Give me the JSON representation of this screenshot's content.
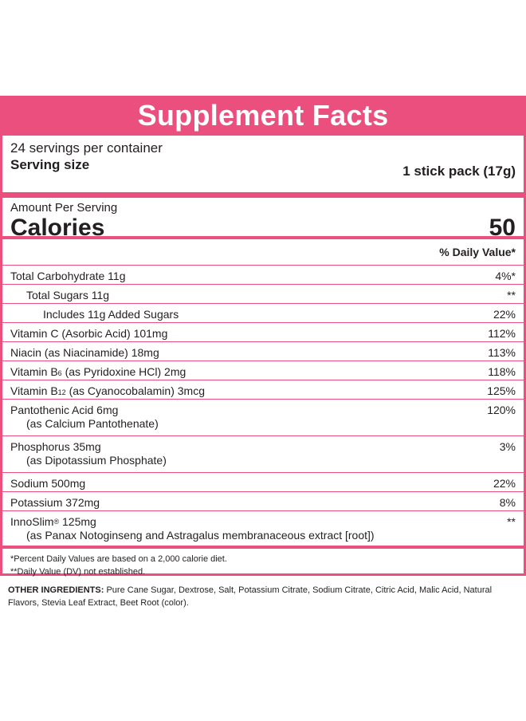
{
  "title": "Supplement Facts",
  "servings_per_container": "24 servings per container",
  "serving_size_label": "Serving size",
  "serving_size_value": "1 stick pack (17g)",
  "amount_per_serving": "Amount Per Serving",
  "calories_label": "Calories",
  "calories_value": "50",
  "dv_header": "% Daily Value*",
  "rows": [
    {
      "name": "Total Carbohydrate 11g",
      "dv": "4%*"
    },
    {
      "name": "Total Sugars 11g",
      "dv": "**"
    },
    {
      "name": "Includes 11g Added Sugars",
      "dv": "22%"
    },
    {
      "name": "Vitamin C (Asorbic Acid) 101mg",
      "dv": "112%"
    },
    {
      "name": "Niacin (as Niacinamide) 18mg",
      "dv": "113%"
    },
    {
      "name_a": "Vitamin B",
      "name_sub": "6",
      "name_b": " (as Pyridoxine HCl) 2mg",
      "dv": "118%"
    },
    {
      "name_a": "Vitamin B",
      "name_sub": "12",
      "name_b": " (as Cyanocobalamin) 3mcg",
      "dv": "125%"
    },
    {
      "name": "Pantothenic Acid 6mg",
      "sub": "(as Calcium Pantothenate)",
      "dv": "120%"
    },
    {
      "name": "Phosphorus 35mg",
      "sub": "(as Dipotassium Phosphate)",
      "dv": "3%"
    },
    {
      "name": "Sodium 500mg",
      "dv": "22%"
    },
    {
      "name": "Potassium 372mg",
      "dv": "8%"
    },
    {
      "name_a": "InnoSlim",
      "name_reg": "®",
      "name_b": " 125mg",
      "sub": "(as Panax Notoginseng and Astragalus membranaceous extract [root])",
      "dv": "**"
    }
  ],
  "footnote_1": "*Percent Daily Values are based on a 2,000 calorie diet.",
  "footnote_2": "**Daily Value (DV) not established.",
  "other_label": "OTHER INGREDIENTS:",
  "other_text": " Pure Cane Sugar, Dextrose, Salt, Potassium Citrate, Sodium Citrate, Citric Acid, Malic Acid, Natural Flavors, Stevia Leaf Extract, Beet Root (color).",
  "accent_color": "#ea4f7e"
}
